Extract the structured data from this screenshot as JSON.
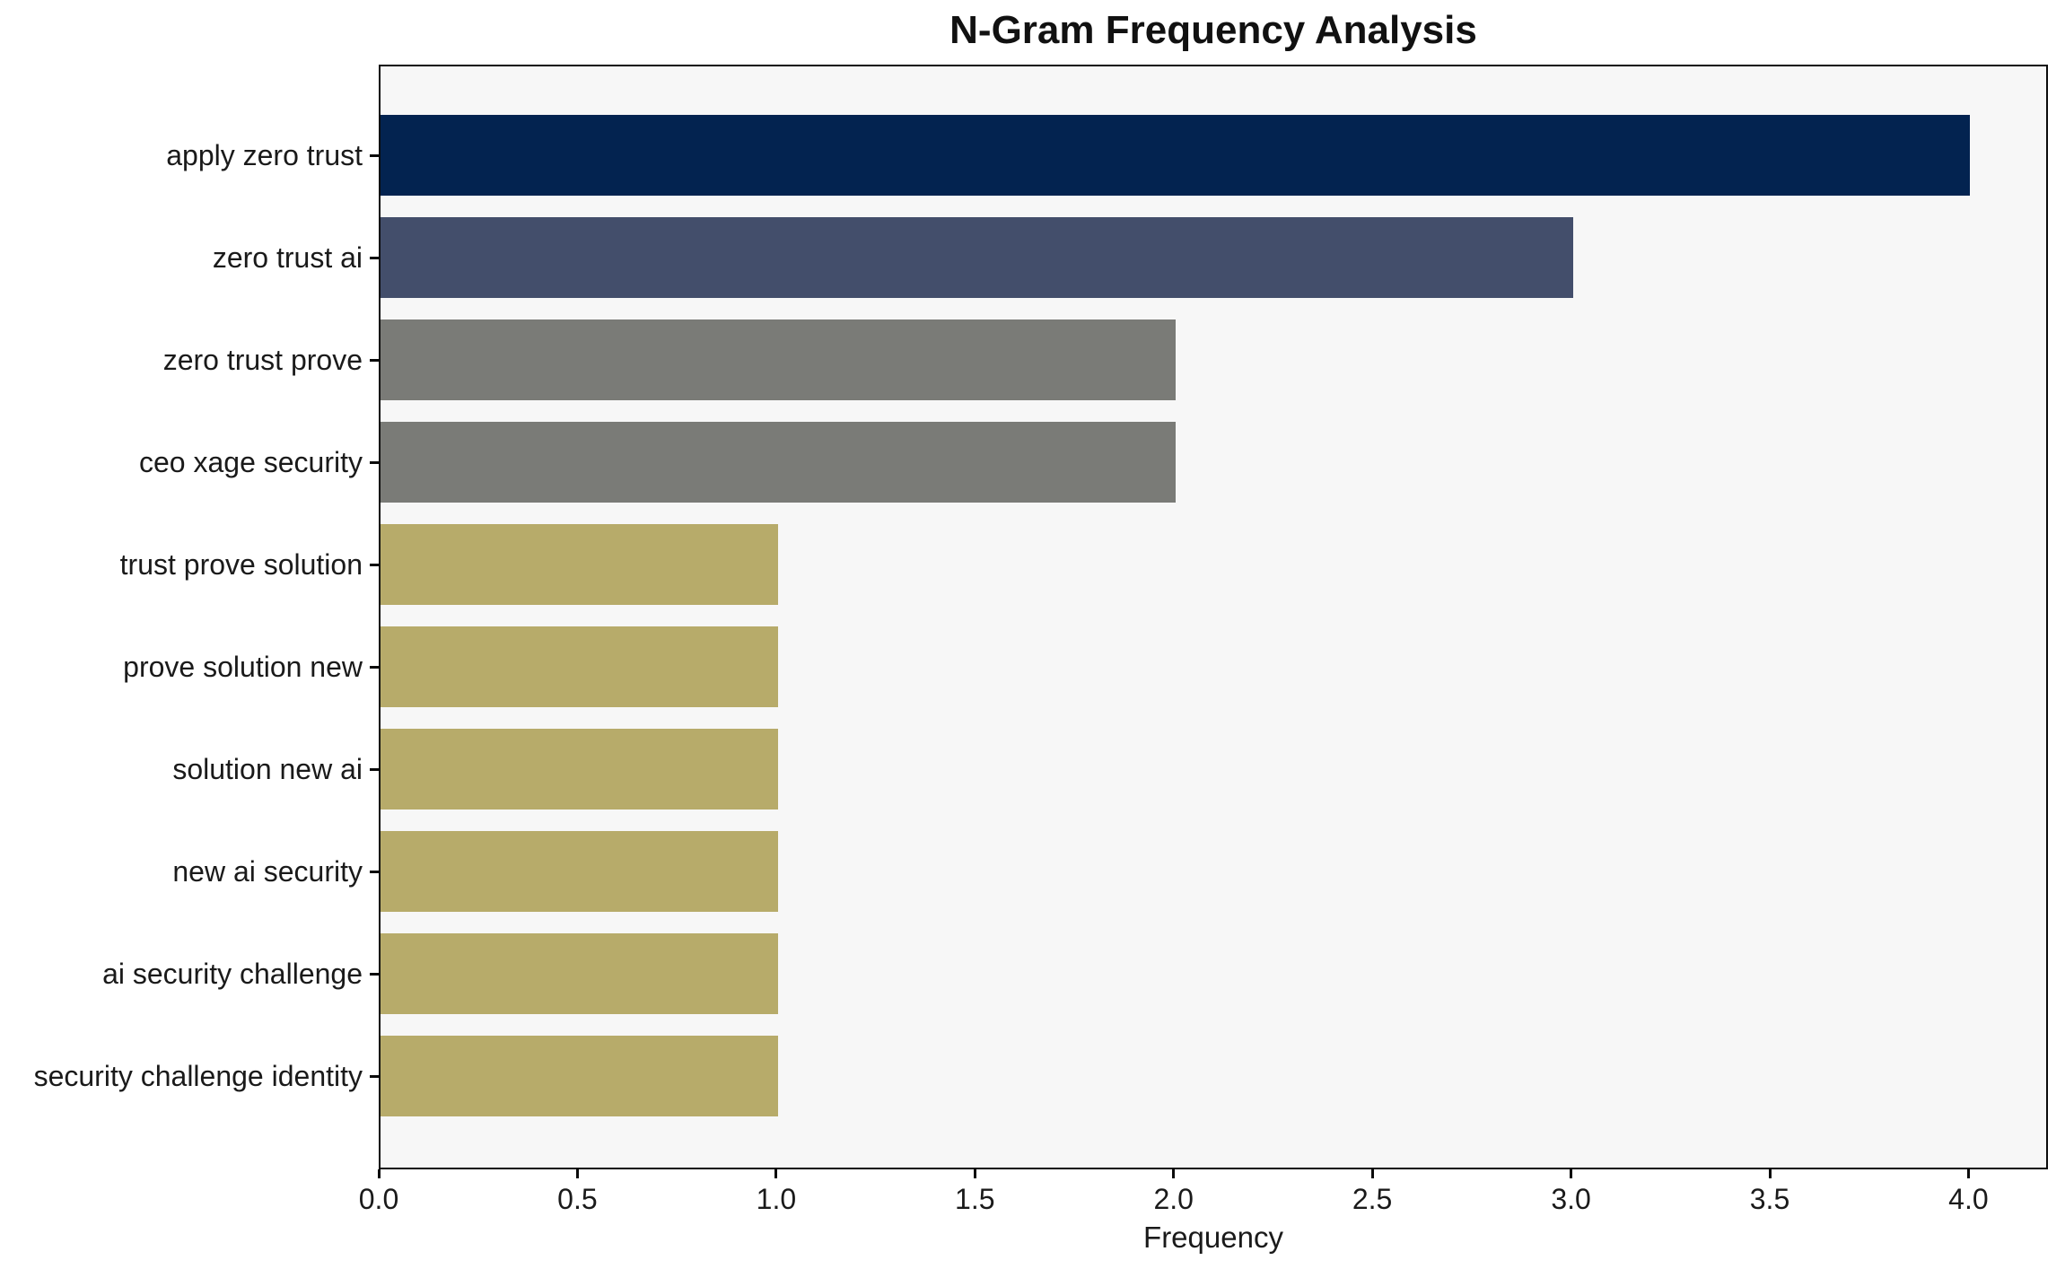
{
  "chart_data": {
    "type": "bar",
    "orientation": "horizontal",
    "title": "N-Gram Frequency Analysis",
    "xlabel": "Frequency",
    "ylabel": "",
    "categories": [
      "apply zero trust",
      "zero trust ai",
      "zero trust prove",
      "ceo xage security",
      "trust prove solution",
      "prove solution new",
      "solution new ai",
      "new ai security",
      "ai security challenge",
      "security challenge identity"
    ],
    "values": [
      4,
      3,
      2,
      2,
      1,
      1,
      1,
      1,
      1,
      1
    ],
    "bar_colors": [
      "#032350",
      "#434e6b",
      "#7a7b77",
      "#7a7b77",
      "#b7ab6a",
      "#b7ab6a",
      "#b7ab6a",
      "#b7ab6a",
      "#b7ab6a",
      "#b7ab6a"
    ],
    "xlim": [
      0,
      4.2
    ],
    "x_ticks": [
      0,
      0.5,
      1,
      1.5,
      2,
      2.5,
      3,
      3.5,
      4
    ],
    "x_tick_labels": [
      "0.0",
      "0.5",
      "1.0",
      "1.5",
      "2.0",
      "2.5",
      "3.0",
      "3.5",
      "4.0"
    ],
    "grid": "off",
    "legend": "none",
    "plot_background": "#f7f7f7",
    "figure_background": "#ffffff",
    "spine_color": "#0b0b0b"
  }
}
